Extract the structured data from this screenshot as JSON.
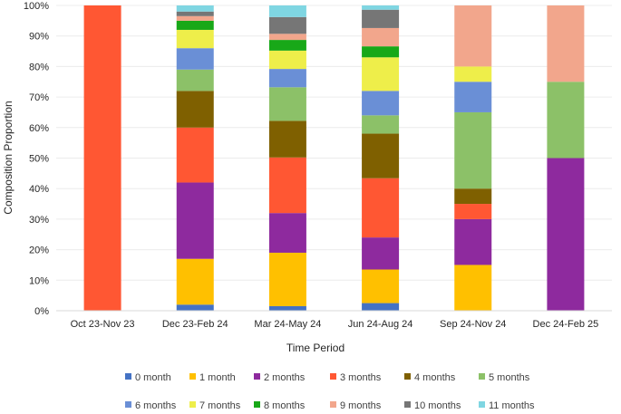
{
  "chart_data": {
    "type": "stacked-bar-100",
    "title": "",
    "xlabel": "Time Period",
    "ylabel": "Composition Proportion",
    "ylim": [
      0,
      100
    ],
    "yticks": [
      "0%",
      "10%",
      "20%",
      "30%",
      "40%",
      "50%",
      "60%",
      "70%",
      "80%",
      "90%",
      "100%"
    ],
    "categories": [
      "Oct 23-Nov 23",
      "Dec 23-Feb 24",
      "Mar 24-May 24",
      "Jun 24-Aug 24",
      "Sep 24-Nov 24",
      "Dec 24-Feb 25"
    ],
    "legend_position": "bottom",
    "series": [
      {
        "name": "0 month",
        "color": "#4472C4",
        "values": [
          0,
          2,
          1.5,
          2.5,
          0,
          0
        ]
      },
      {
        "name": "1 month",
        "color": "#FFC000",
        "values": [
          0,
          15,
          17.5,
          11,
          15,
          0
        ]
      },
      {
        "name": "2 months",
        "color": "#8E2A9E",
        "values": [
          0,
          25,
          13,
          10.5,
          15,
          50
        ]
      },
      {
        "name": "3 months",
        "color": "#FF5733",
        "values": [
          100,
          18,
          18.2,
          19.4,
          5,
          0
        ]
      },
      {
        "name": "4 months",
        "color": "#7F6000",
        "values": [
          0,
          12,
          12,
          14.6,
          5,
          0
        ]
      },
      {
        "name": "5 months",
        "color": "#8CC168",
        "values": [
          0,
          7,
          11,
          6,
          25,
          25
        ]
      },
      {
        "name": "6 months",
        "color": "#6A8FD6",
        "values": [
          0,
          7,
          6,
          8,
          10,
          0
        ]
      },
      {
        "name": "7 months",
        "color": "#EEEE4A",
        "values": [
          0,
          6,
          6,
          11,
          5,
          0
        ]
      },
      {
        "name": "8 months",
        "color": "#18A818",
        "values": [
          0,
          3,
          3.5,
          3.6,
          0,
          0
        ]
      },
      {
        "name": "9 months",
        "color": "#F2A68C",
        "values": [
          0,
          1.5,
          2,
          6,
          20,
          25
        ]
      },
      {
        "name": "10 months",
        "color": "#767676",
        "values": [
          0,
          1.5,
          5.5,
          6,
          0,
          0
        ]
      },
      {
        "name": "11 months",
        "color": "#7FD6E2",
        "values": [
          0,
          2,
          3.8,
          1.4,
          0,
          0
        ]
      }
    ]
  }
}
